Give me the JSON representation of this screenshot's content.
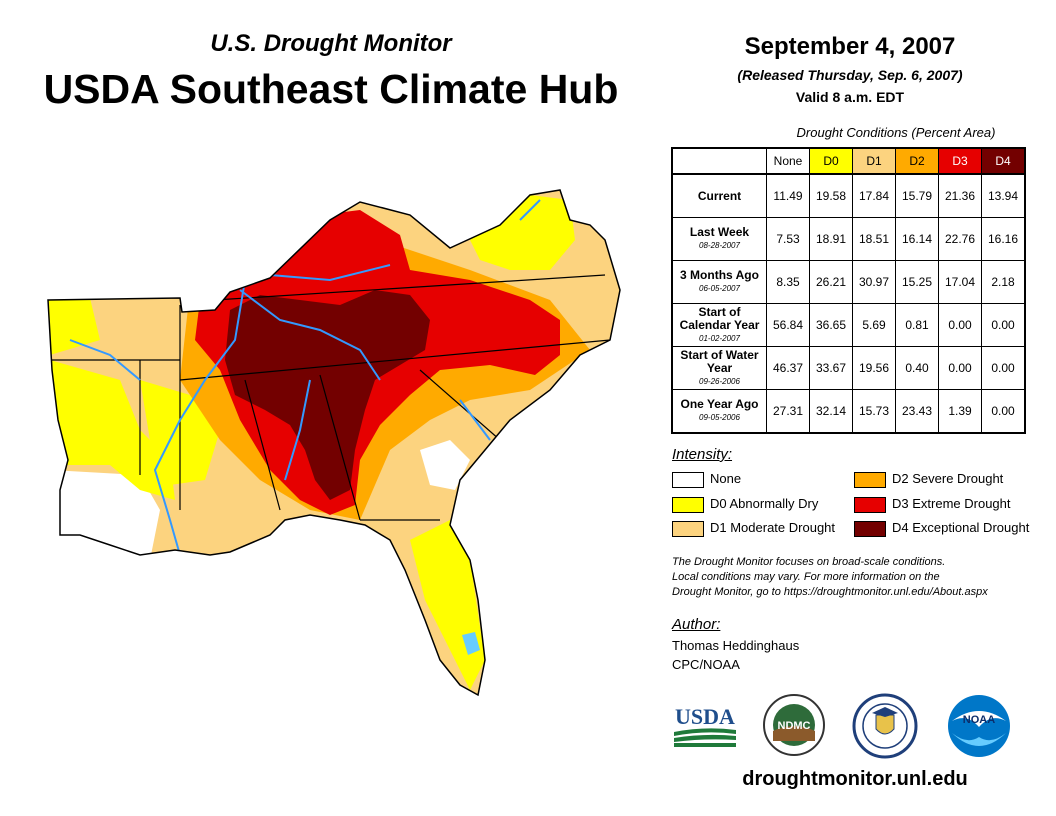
{
  "header": {
    "supertitle": "U.S. Drought Monitor",
    "title": "USDA Southeast Climate Hub",
    "date": "September 4, 2007",
    "released": "(Released Thursday, Sep. 6, 2007)",
    "valid": "Valid 8 a.m. EDT"
  },
  "table": {
    "caption": "Drought Conditions (Percent Area)",
    "columns": [
      {
        "label": "None",
        "color": "#ffffff",
        "text_color": "#000000"
      },
      {
        "label": "D0",
        "color": "#ffff00",
        "text_color": "#000000"
      },
      {
        "label": "D1",
        "color": "#fcd37f",
        "text_color": "#000000"
      },
      {
        "label": "D2",
        "color": "#ffaa00",
        "text_color": "#000000"
      },
      {
        "label": "D3",
        "color": "#e60000",
        "text_color": "#ffffff"
      },
      {
        "label": "D4",
        "color": "#730000",
        "text_color": "#ffffff"
      }
    ],
    "rows": [
      {
        "label": "Current",
        "date": "",
        "values": [
          "11.49",
          "19.58",
          "17.84",
          "15.79",
          "21.36",
          "13.94"
        ]
      },
      {
        "label": "Last Week",
        "date": "08-28-2007",
        "values": [
          "7.53",
          "18.91",
          "18.51",
          "16.14",
          "22.76",
          "16.16"
        ]
      },
      {
        "label": "3 Months Ago",
        "date": "06-05-2007",
        "values": [
          "8.35",
          "26.21",
          "30.97",
          "15.25",
          "17.04",
          "2.18"
        ]
      },
      {
        "label": "Start of Calendar Year",
        "date": "01-02-2007",
        "values": [
          "56.84",
          "36.65",
          "5.69",
          "0.81",
          "0.00",
          "0.00"
        ]
      },
      {
        "label": "Start of Water Year",
        "date": "09-26-2006",
        "values": [
          "46.37",
          "33.67",
          "19.56",
          "0.40",
          "0.00",
          "0.00"
        ]
      },
      {
        "label": "One Year Ago",
        "date": "09-05-2006",
        "values": [
          "27.31",
          "32.14",
          "15.73",
          "23.43",
          "1.39",
          "0.00"
        ]
      }
    ]
  },
  "legend": {
    "title": "Intensity:",
    "items": [
      {
        "label": "None",
        "color": "#ffffff"
      },
      {
        "label": "D0 Abnormally Dry",
        "color": "#ffff00"
      },
      {
        "label": "D1 Moderate Drought",
        "color": "#fcd37f"
      },
      {
        "label": "D2 Severe Drought",
        "color": "#ffaa00"
      },
      {
        "label": "D3 Extreme Drought",
        "color": "#e60000"
      },
      {
        "label": "D4 Exceptional Drought",
        "color": "#730000"
      }
    ]
  },
  "note": {
    "line1": "The Drought Monitor focuses on broad-scale conditions.",
    "line2": "Local conditions may vary. For more information on the",
    "line3": "Drought Monitor, go to https://droughtmonitor.unl.edu/About.aspx"
  },
  "author": {
    "title": "Author:",
    "name": "Thomas Heddinghaus",
    "org": "CPC/NOAA"
  },
  "logos": {
    "usda": "USDA",
    "ndmc": "NDMC",
    "noaa": "NOAA"
  },
  "website": "droughtmonitor.unl.edu",
  "map_colors": {
    "none": "#ffffff",
    "d0": "#ffff00",
    "d1": "#fcd37f",
    "d2": "#ffaa00",
    "d3": "#e60000",
    "d4": "#730000",
    "rivers": "#3399ff",
    "lake": "#66ccff"
  }
}
